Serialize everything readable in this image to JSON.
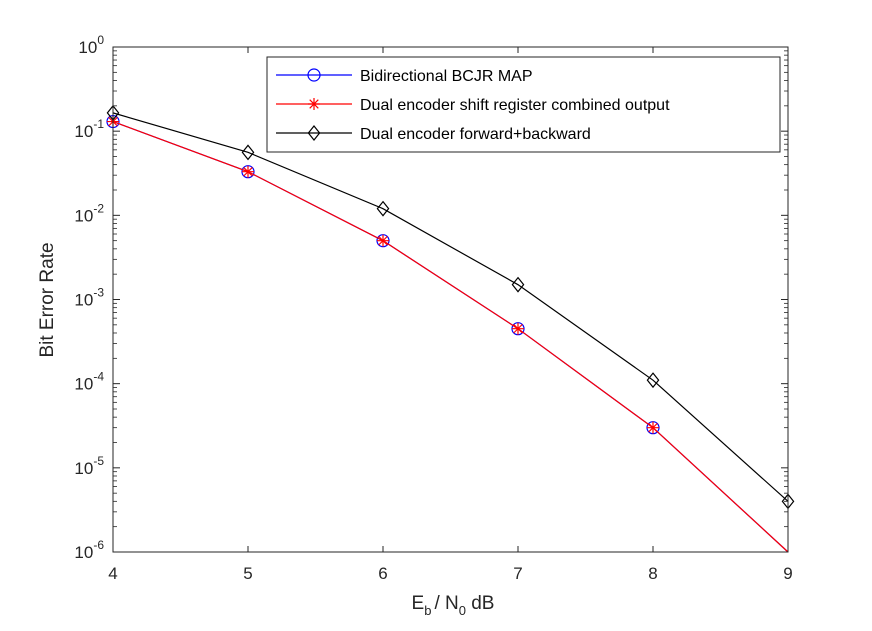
{
  "chart_data": {
    "type": "line",
    "yscale": "log",
    "x": [
      4,
      5,
      6,
      7,
      8,
      9
    ],
    "xlim": [
      4,
      9
    ],
    "ylim": [
      1e-06,
      1
    ],
    "xlabel": {
      "base": "E",
      "sub1": "b",
      "mid": "/ N",
      "sub2": "0",
      "tail": " dB"
    },
    "ylabel": "Bit Error Rate",
    "x_ticks": [
      {
        "value": 4,
        "label": "4"
      },
      {
        "value": 5,
        "label": "5"
      },
      {
        "value": 6,
        "label": "6"
      },
      {
        "value": 7,
        "label": "7"
      },
      {
        "value": 8,
        "label": "8"
      },
      {
        "value": 9,
        "label": "9"
      }
    ],
    "y_ticks": [
      {
        "exp": 0,
        "base": "10",
        "sup": "0"
      },
      {
        "exp": -1,
        "base": "10",
        "sup": "-1"
      },
      {
        "exp": -2,
        "base": "10",
        "sup": "-2"
      },
      {
        "exp": -3,
        "base": "10",
        "sup": "-3"
      },
      {
        "exp": -4,
        "base": "10",
        "sup": "-4"
      },
      {
        "exp": -5,
        "base": "10",
        "sup": "-5"
      },
      {
        "exp": -6,
        "base": "10",
        "sup": "-6"
      }
    ],
    "legend_position": "top-right",
    "series": [
      {
        "name": "Bidirectional BCJR MAP",
        "color": "#0000ff",
        "marker": "circle",
        "x": [
          4,
          5,
          6,
          7,
          8,
          9
        ],
        "values": [
          0.13,
          0.033,
          0.005,
          0.00045,
          3e-05,
          1e-06
        ]
      },
      {
        "name": "Dual encoder shift register combined output",
        "color": "#ff0000",
        "marker": "star",
        "x": [
          4,
          5,
          6,
          7,
          8,
          9
        ],
        "values": [
          0.13,
          0.033,
          0.005,
          0.00045,
          3e-05,
          1e-06
        ]
      },
      {
        "name": "Dual encoder forward+backward",
        "color": "#000000",
        "marker": "diamond",
        "x": [
          4,
          5,
          6,
          7,
          8,
          9
        ],
        "values": [
          0.165,
          0.056,
          0.012,
          0.0015,
          0.00011,
          4e-06
        ]
      }
    ]
  }
}
